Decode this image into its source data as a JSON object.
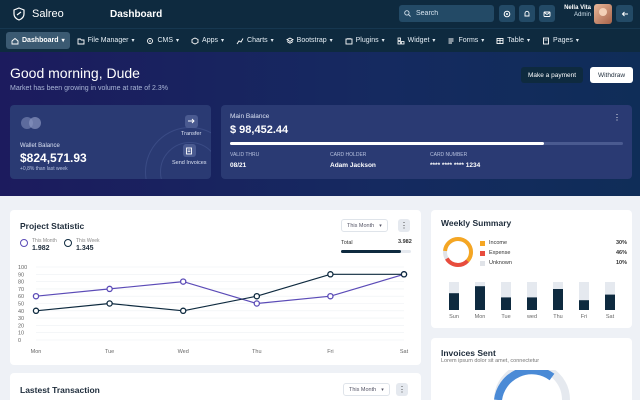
{
  "header": {
    "brand": "Salreo",
    "title": "Dashboard",
    "search_placeholder": "Search",
    "user_name": "Nella Vita",
    "user_role": "Admin"
  },
  "menu": [
    {
      "label": "Dashboard",
      "icon": "home-icon",
      "active": true
    },
    {
      "label": "File Manager",
      "icon": "folder-icon"
    },
    {
      "label": "CMS",
      "icon": "gear-icon"
    },
    {
      "label": "Apps",
      "icon": "cube-icon"
    },
    {
      "label": "Charts",
      "icon": "chart-icon"
    },
    {
      "label": "Bootstrap",
      "icon": "layers-icon"
    },
    {
      "label": "Plugins",
      "icon": "plugin-icon"
    },
    {
      "label": "Widget",
      "icon": "widget-icon"
    },
    {
      "label": "Forms",
      "icon": "form-icon"
    },
    {
      "label": "Table",
      "icon": "table-icon"
    },
    {
      "label": "Pages",
      "icon": "pages-icon"
    }
  ],
  "hero": {
    "greeting": "Good morning, Dude",
    "subtitle": "Market has been growing in volume at rate of 2.3%",
    "make_payment": "Make a payment",
    "withdraw": "Withdraw"
  },
  "wallet": {
    "label": "Wallet Balance",
    "amount": "$824,571.93",
    "change": "+0,8% than last week",
    "transfer": "Transfer",
    "send_invoices": "Send Invoices"
  },
  "main_balance": {
    "label": "Main Balance",
    "amount": "$ 98,452.44",
    "progress": 0.8,
    "valid_thru_label": "VALID THRU",
    "valid_thru": "08/21",
    "holder_label": "CARD HOLDER",
    "holder": "Adam Jackson",
    "number_label": "CARD NUMBER",
    "number": "**** **** **** 1234"
  },
  "project_statistic": {
    "title": "Project Statistic",
    "filter": "This Month",
    "this_month_label": "This Month",
    "this_month_value": "1.982",
    "this_week_label": "This Week",
    "this_week_value": "1.345",
    "total_label": "Total",
    "total_value": "3.982",
    "total_progress": 0.85
  },
  "chart_data": {
    "type": "line",
    "categories": [
      "Mon",
      "Tue",
      "Wed",
      "Thu",
      "Fri",
      "Sat"
    ],
    "ylim": [
      0,
      100
    ],
    "yticks": [
      0,
      10,
      20,
      30,
      40,
      50,
      60,
      70,
      80,
      90,
      100
    ],
    "series": [
      {
        "name": "This Month",
        "values": [
          60,
          70,
          80,
          50,
          60,
          90
        ],
        "color": "#5b4bb7"
      },
      {
        "name": "This Week",
        "values": [
          40,
          50,
          40,
          60,
          90,
          90
        ],
        "color": "#0e2a3f"
      }
    ]
  },
  "weekly_summary": {
    "title": "Weekly Summary",
    "items": [
      {
        "label": "Income",
        "value": "30%",
        "color": "#f5a623"
      },
      {
        "label": "Expense",
        "value": "46%",
        "color": "#e84c3d"
      },
      {
        "label": "Unknown",
        "value": "10%",
        "color": "#e0e3e8"
      }
    ],
    "days": [
      "Sun",
      "Mon",
      "Tue",
      "wed",
      "Thu",
      "Fri",
      "Sat"
    ],
    "bar_values": [
      0.6,
      0.85,
      0.45,
      0.45,
      0.75,
      0.35,
      0.55
    ],
    "bar_colors": {
      "filled": "#0e2a3f",
      "track": "#e5e9ef"
    }
  },
  "latest_transaction": {
    "title": "Lastest Transaction",
    "filter": "This Month"
  },
  "invoices": {
    "title": "Invoices Sent",
    "subtitle": "Lorem ipsum dolor sit amet, connectetur"
  }
}
